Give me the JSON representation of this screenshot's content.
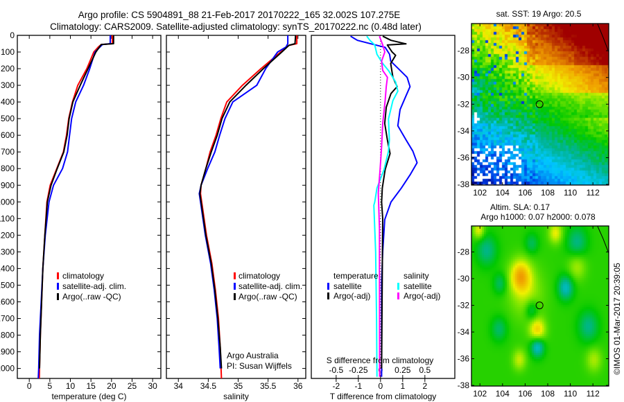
{
  "header": {
    "line1": "Argo profile: CS 5904891_88 21-Feb-2017 20170222_165 32.002S 107.275E",
    "line2": "Climatology: CARS2009. Satellite-adjusted climatology: synTS_20170222.nc (0.48d later)"
  },
  "colors": {
    "climatology": "#ff0000",
    "satellite": "#0000ff",
    "argo": "#000000",
    "sal_satellite": "#00ffff",
    "sal_argo": "#ff00ff"
  },
  "depth_axis": {
    "ticks": [
      0,
      100,
      200,
      300,
      400,
      500,
      600,
      700,
      800,
      900,
      1000,
      1100,
      1200,
      1300,
      1400,
      1500,
      1600,
      1700,
      1800,
      1900,
      2000
    ],
    "ylim": [
      0,
      2060
    ]
  },
  "chart_data": [
    {
      "type": "line",
      "title": "",
      "xlabel": "temperature (deg C)",
      "ylabel": "depth",
      "xlim": [
        -2.9,
        32
      ],
      "xticks": [
        0,
        5,
        10,
        15,
        20,
        25,
        30
      ],
      "legend": {
        "placement": "center-left",
        "entries": [
          "climatology",
          "satellite-adj. clim.",
          "Argo(..raw -QC)"
        ]
      },
      "series": [
        {
          "name": "climatology",
          "color_key": "climatology",
          "points": [
            [
              0,
              20.2
            ],
            [
              50,
              20.2
            ],
            [
              55,
              17.5
            ],
            [
              70,
              16.8
            ],
            [
              100,
              15.7
            ],
            [
              200,
              14.0
            ],
            [
              300,
              11.8
            ],
            [
              400,
              10.5
            ],
            [
              500,
              9.6
            ],
            [
              600,
              9.05
            ],
            [
              700,
              8.3
            ],
            [
              800,
              6.7
            ],
            [
              900,
              5.1
            ],
            [
              1000,
              4.3
            ],
            [
              1200,
              3.8
            ],
            [
              1400,
              3.3
            ],
            [
              1600,
              3.0
            ],
            [
              1800,
              2.7
            ],
            [
              2000,
              2.5
            ],
            [
              2060,
              2.45
            ]
          ]
        },
        {
          "name": "satellite-adj. clim.",
          "color_key": "satellite",
          "points": [
            [
              0,
              19.7
            ],
            [
              50,
              19.7
            ],
            [
              55,
              17.8
            ],
            [
              100,
              16.0
            ],
            [
              200,
              14.7
            ],
            [
              300,
              13.2
            ],
            [
              400,
              11.3
            ],
            [
              500,
              10.3
            ],
            [
              600,
              9.8
            ],
            [
              700,
              9.3
            ],
            [
              800,
              8.1
            ],
            [
              900,
              5.9
            ],
            [
              1000,
              4.8
            ],
            [
              1200,
              3.9
            ],
            [
              1400,
              3.3
            ],
            [
              1600,
              2.9
            ],
            [
              1800,
              2.5
            ],
            [
              2000,
              2.3
            ],
            [
              2060,
              2.2
            ]
          ]
        },
        {
          "name": "Argo(..raw -QC)",
          "color_key": "argo",
          "points": [
            [
              0,
              20.5
            ],
            [
              50,
              20.5
            ],
            [
              55,
              17.5
            ],
            [
              100,
              16.2
            ],
            [
              200,
              14.3
            ],
            [
              300,
              12.4
            ],
            [
              400,
              10.6
            ],
            [
              500,
              9.7
            ],
            [
              600,
              9.2
            ],
            [
              700,
              8.4
            ],
            [
              800,
              6.8
            ],
            [
              900,
              5.3
            ],
            [
              1000,
              4.4
            ],
            [
              1200,
              3.8
            ],
            [
              1400,
              3.3
            ],
            [
              1600,
              3.0
            ],
            [
              1800,
              2.7
            ],
            [
              2000,
              2.5
            ]
          ]
        }
      ]
    },
    {
      "type": "line",
      "title": "",
      "xlabel": "salinity",
      "ylabel": "depth",
      "xlim": [
        33.8,
        36.13
      ],
      "xticks": [
        34,
        34.5,
        35,
        35.5,
        36
      ],
      "legend": {
        "placement": "center-right",
        "entries": [
          "climatology",
          "satellite-adj. clim.",
          "Argo(..raw -QC)"
        ]
      },
      "annotation": [
        "Argo Australia",
        "PI: Susan Wijffels"
      ],
      "series": [
        {
          "name": "climatology",
          "color_key": "climatology",
          "points": [
            [
              0,
              35.98
            ],
            [
              50,
              35.98
            ],
            [
              60,
              35.85
            ],
            [
              100,
              35.71
            ],
            [
              200,
              35.38
            ],
            [
              300,
              35.07
            ],
            [
              400,
              34.81
            ],
            [
              500,
              34.71
            ],
            [
              600,
              34.63
            ],
            [
              700,
              34.53
            ],
            [
              800,
              34.46
            ],
            [
              900,
              34.38
            ],
            [
              950,
              34.37
            ],
            [
              1000,
              34.39
            ],
            [
              1200,
              34.47
            ],
            [
              1370,
              34.56
            ],
            [
              1530,
              34.62
            ],
            [
              1700,
              34.67
            ],
            [
              1870,
              34.7
            ],
            [
              2060,
              34.72
            ]
          ]
        },
        {
          "name": "satellite-adj. clim.",
          "color_key": "satellite",
          "points": [
            [
              0,
              35.83
            ],
            [
              50,
              35.83
            ],
            [
              70,
              35.8
            ],
            [
              100,
              35.66
            ],
            [
              200,
              35.46
            ],
            [
              300,
              35.31
            ],
            [
              400,
              34.91
            ],
            [
              500,
              34.78
            ],
            [
              600,
              34.69
            ],
            [
              700,
              34.61
            ],
            [
              800,
              34.49
            ],
            [
              900,
              34.38
            ],
            [
              950,
              34.35
            ],
            [
              1000,
              34.37
            ],
            [
              1200,
              34.45
            ],
            [
              1370,
              34.54
            ],
            [
              1530,
              34.6
            ],
            [
              1700,
              34.65
            ],
            [
              1870,
              34.68
            ],
            [
              2000,
              34.7
            ]
          ]
        },
        {
          "name": "Argo(..raw -QC)",
          "color_key": "argo",
          "points": [
            [
              0,
              35.96
            ],
            [
              50,
              35.95
            ],
            [
              60,
              35.85
            ],
            [
              100,
              35.73
            ],
            [
              200,
              35.42
            ],
            [
              300,
              35.13
            ],
            [
              400,
              34.86
            ],
            [
              500,
              34.73
            ],
            [
              600,
              34.65
            ],
            [
              700,
              34.55
            ],
            [
              800,
              34.46
            ],
            [
              900,
              34.38
            ],
            [
              950,
              34.36
            ],
            [
              1000,
              34.38
            ],
            [
              1200,
              34.46
            ],
            [
              1370,
              34.55
            ],
            [
              1530,
              34.61
            ],
            [
              1700,
              34.66
            ],
            [
              1870,
              34.7
            ],
            [
              2000,
              34.72
            ]
          ]
        }
      ]
    },
    {
      "type": "line",
      "title": "",
      "xlabel": "T difference from climatology",
      "xlabel2": "S difference from climatology",
      "ylabel": "depth",
      "xlim": [
        -3.12,
        3.35
      ],
      "xticks": [
        -2,
        -1,
        0,
        1,
        2
      ],
      "xticks_labels": [
        "-2",
        "-1",
        "0",
        "1",
        "2"
      ],
      "s_to_t_scale": 4,
      "sticks": [
        -0.5,
        -0.25,
        0,
        0.25,
        0.5
      ],
      "sticks_labels": [
        "-0.5",
        "-0.25",
        "0",
        "0.25",
        "0.5"
      ],
      "legend": {
        "placement": "bottom-center",
        "temperature_header": "temperature",
        "salinity_header": "salinity",
        "entries": [
          "satellite",
          "Argo(-adj)",
          "satellite",
          "Argo(-adj)"
        ]
      },
      "series": [
        {
          "name": "temperature satellite",
          "variable": "T",
          "color_key": "satellite",
          "points": [
            [
              5,
              -1.35
            ],
            [
              30,
              -1.04
            ],
            [
              51,
              -0.42
            ],
            [
              72,
              0.21
            ],
            [
              114,
              0.41
            ],
            [
              155,
              0.46
            ],
            [
              197,
              0.78
            ],
            [
              252,
              1.2
            ],
            [
              308,
              1.33
            ],
            [
              363,
              1.15
            ],
            [
              446,
              0.88
            ],
            [
              543,
              0.78
            ],
            [
              627,
              1.15
            ],
            [
              696,
              1.46
            ],
            [
              765,
              1.65
            ],
            [
              834,
              1.35
            ],
            [
              917,
              0.94
            ],
            [
              1001,
              0.47
            ],
            [
              1106,
              0.19
            ],
            [
              1297,
              0.1
            ],
            [
              1480,
              0.05
            ],
            [
              2050,
              0.05
            ]
          ]
        },
        {
          "name": "temperature Argo(-adj)",
          "variable": "T",
          "color_key": "argo",
          "points": [
            [
              5,
              0.1
            ],
            [
              30,
              0.47
            ],
            [
              51,
              1.15
            ],
            [
              58,
              0.31
            ],
            [
              100,
              0.52
            ],
            [
              120,
              0.68
            ],
            [
              169,
              0.46
            ],
            [
              252,
              0.56
            ],
            [
              308,
              0.75
            ],
            [
              349,
              0.47
            ],
            [
              432,
              0.26
            ],
            [
              529,
              0.19
            ],
            [
              627,
              0.31
            ],
            [
              710,
              0.43
            ],
            [
              806,
              0.21
            ],
            [
              917,
              0.08
            ],
            [
              1001,
              0.05
            ],
            [
              1100,
              0.1
            ],
            [
              1400,
              0.08
            ],
            [
              2000,
              0.05
            ]
          ]
        },
        {
          "name": "salinity satellite",
          "variable": "S",
          "color_key": "sal_satellite",
          "points": [
            [
              5,
              -0.155
            ],
            [
              30,
              -0.12
            ],
            [
              58,
              -0.065
            ],
            [
              114,
              -0.04
            ],
            [
              169,
              0.025
            ],
            [
              211,
              0.09
            ],
            [
              280,
              0.17
            ],
            [
              335,
              0.195
            ],
            [
              391,
              0.14
            ],
            [
              502,
              0.09
            ],
            [
              627,
              0.1
            ],
            [
              696,
              0.09
            ],
            [
              806,
              0.04
            ],
            [
              917,
              -0.04
            ],
            [
              1001,
              -0.065
            ],
            [
              1020,
              -0.075
            ],
            [
              1160,
              -0.065
            ],
            [
              1300,
              -0.055
            ],
            [
              1480,
              -0.05
            ],
            [
              1700,
              -0.045
            ],
            [
              2050,
              -0.04
            ]
          ]
        },
        {
          "name": "salinity Argo(-adj)",
          "variable": "S",
          "color_key": "sal_argo",
          "points": [
            [
              5,
              -0.012
            ],
            [
              58,
              0.025
            ],
            [
              100,
              0.048
            ],
            [
              155,
              0.012
            ],
            [
              211,
              0.025
            ],
            [
              252,
              0.078
            ],
            [
              308,
              0.065
            ],
            [
              391,
              0.052
            ],
            [
              529,
              0.025
            ],
            [
              668,
              0.012
            ],
            [
              806,
              -0.005
            ],
            [
              945,
              -0.025
            ],
            [
              1160,
              -0.012
            ],
            [
              1400,
              -0.012
            ],
            [
              2050,
              -0.01
            ]
          ]
        }
      ]
    }
  ],
  "maps": {
    "sst": {
      "title": "sat. SST: 19 Argo: 20.5"
    },
    "sla": {
      "title1": "Altim. SLA: 0.17",
      "title2": "Argo h1000: 0.07 h2000: 0.078"
    },
    "lon_ticks": [
      102,
      104,
      106,
      108,
      110,
      112
    ],
    "lon_labels": [
      "102",
      "104",
      "106",
      "108",
      "110",
      "112"
    ],
    "lat_ticks": [
      -28,
      -30,
      -32,
      -34,
      -36,
      -38
    ],
    "lat_labels": [
      "-28",
      "-30",
      "-32",
      "-34",
      "-36",
      "-38"
    ],
    "float_position": {
      "lon": 107.275,
      "lat": -32.002
    }
  },
  "footer": {
    "credit": "©IMOS 01-Mar-2017 20:39:05"
  }
}
